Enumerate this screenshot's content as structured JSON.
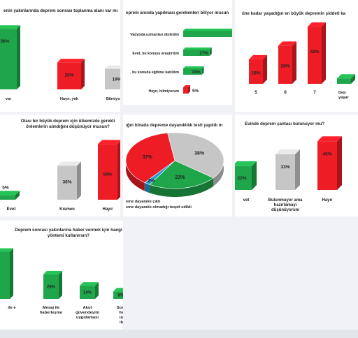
{
  "colors": {
    "green": "#1fa64a",
    "red": "#ee1c25",
    "gray": "#c6c6c6",
    "blue": "#2a9ad6"
  },
  "chart_data": [
    {
      "id": "c1",
      "type": "bar",
      "title": "enin yakınlarında deprem sonrası toplanma alanı var mı",
      "categories": [
        "var",
        "Hayır, yok",
        "Bilmiyorum"
      ],
      "values": [
        56,
        25,
        19
      ],
      "value_labels": [
        "56%",
        "25%",
        "19%"
      ],
      "colors": [
        "#1fa64a",
        "#ee1c25",
        "#c6c6c6"
      ]
    },
    {
      "id": "c2",
      "type": "bar",
      "orientation": "horizontal",
      "title": "eprem anında yapılması gerekenleri biliyor musun",
      "categories": [
        "Vadyoda uzmanları dinledim",
        "Evet, bu konuyu araştırdım",
        ", bu konuda eğitime katıldım",
        "Hayır, bilmiyorum"
      ],
      "values": [
        50,
        27,
        19,
        5
      ],
      "value_labels": [
        "",
        "27%",
        "19%",
        "5%"
      ],
      "colors": [
        "#1fa64a",
        "#1fa64a",
        "#1fa64a",
        "#ee1c25"
      ]
    },
    {
      "id": "c3",
      "type": "bar",
      "title": "üne kadar yaşadığın en büyük depremin şiddeti ka",
      "categories": [
        "",
        "5",
        "6",
        "7",
        "Dep yaşar"
      ],
      "values": [
        0,
        18,
        28,
        42,
        4
      ],
      "value_labels": [
        "",
        "18%",
        "28%",
        "42%",
        ""
      ],
      "colors": [
        "#ee1c25",
        "#ee1c25",
        "#ee1c25",
        "#ee1c25",
        "#1fa64a"
      ]
    },
    {
      "id": "c4",
      "type": "bar",
      "title": "Olası bir büyük deprem için ülkemizde gerekli önlemlerin alındığını düşünüyor musun?",
      "categories": [
        "Evet",
        "Kısmen",
        "Hayır"
      ],
      "values": [
        5,
        36,
        59
      ],
      "value_labels": [
        "5%",
        "36%",
        "59%"
      ],
      "colors": [
        "#1fa64a",
        "#c6c6c6",
        "#ee1c25"
      ]
    },
    {
      "id": "c5",
      "type": "pie",
      "title": "ığın binada depreme dayanıklılık testi yapıldı m",
      "values": [
        38,
        23,
        2,
        37
      ],
      "value_labels": [
        "38%",
        "23%",
        "2%",
        "37%"
      ],
      "colors": [
        "#c6c6c6",
        "#1fa64a",
        "#2a9ad6",
        "#ee1c25"
      ],
      "legend": [
        "eme dayanıklı çıktı",
        "eme dayanıklı olmadığı tespit edildi"
      ]
    },
    {
      "id": "c6",
      "type": "bar",
      "title": "Evinde deprem çantası bulunuyor mu?",
      "categories": [
        "vet",
        "Bulunmuyor ama hazırlamayı düşünüyorum",
        "Hayır"
      ],
      "values": [
        22,
        33,
        45
      ],
      "value_labels": [
        "22%",
        "33%",
        "45%"
      ],
      "colors": [
        "#1fa64a",
        "#c6c6c6",
        "#ee1c25"
      ]
    },
    {
      "id": "c7",
      "type": "bar",
      "title": "Deprem sonrası yakınlarına haber vermek için hangi yöntemi kullanırsın?",
      "categories": [
        "ile e",
        "Mesaj ile haberleşme",
        "Akut güvendeyim uygulaması",
        "Sosyal me hesapla üzerind iletişim"
      ],
      "values": [
        50,
        26,
        14,
        8
      ],
      "value_labels": [
        "",
        "26%",
        "14%",
        "8%"
      ],
      "colors": [
        "#1fa64a",
        "#1fa64a",
        "#1fa64a",
        "#1fa64a"
      ]
    }
  ]
}
